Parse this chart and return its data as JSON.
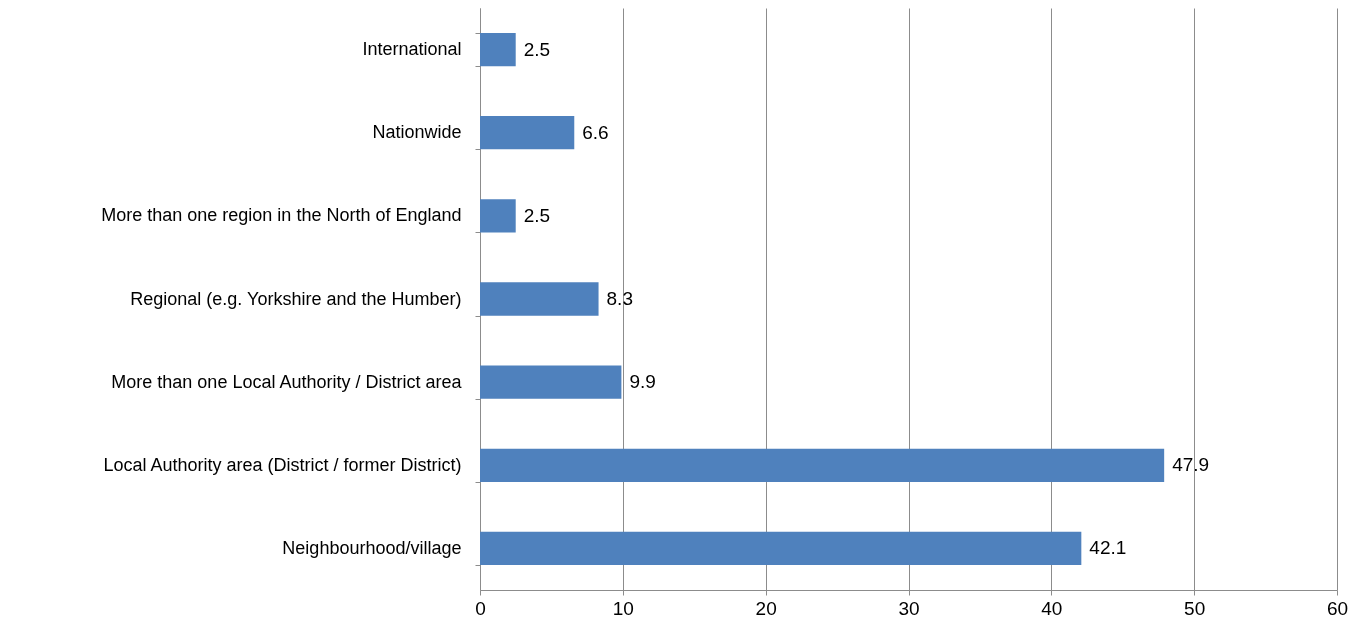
{
  "chart_data": {
    "type": "bar",
    "orientation": "horizontal",
    "categories": [
      "International",
      "Nationwide",
      "More than one region in the North of England",
      "Regional (e.g. Yorkshire and the Humber)",
      "More than one Local Authority / District area",
      "Local Authority area (District / former District)",
      "Neighbourhood/village"
    ],
    "values": [
      2.5,
      6.6,
      2.5,
      8.3,
      9.9,
      47.9,
      42.1
    ],
    "color": "#4f81bd",
    "xlim": [
      0,
      60
    ],
    "xticks": [
      0,
      10,
      20,
      30,
      40,
      50,
      60
    ],
    "grid": "x",
    "data_labels": true
  }
}
